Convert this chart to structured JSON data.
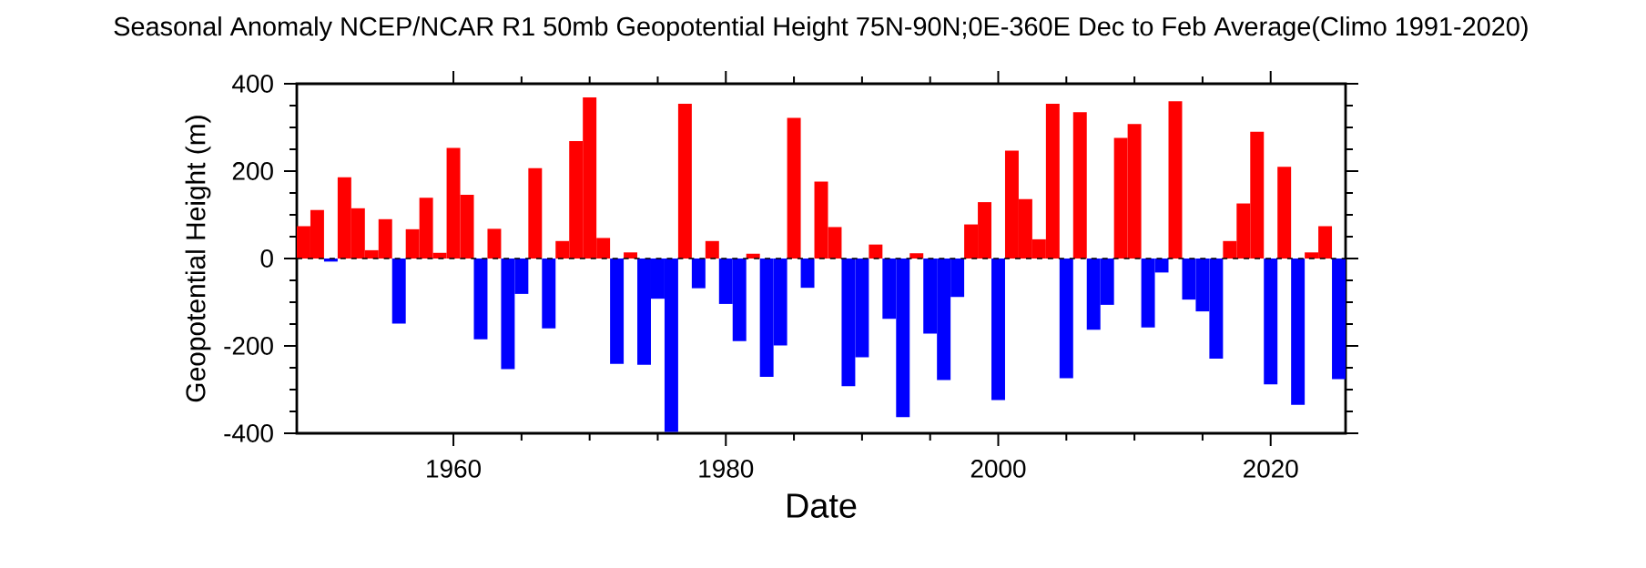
{
  "chart_data": {
    "type": "bar",
    "title": "Seasonal Anomaly NCEP/NCAR R1 50mb Geopotential Height 75N-90N;0E-360E Dec to Feb Average(Climo 1991-2020)",
    "xlabel": "Date",
    "ylabel": "Geopotential Height (m)",
    "x": [
      1949,
      1950,
      1951,
      1952,
      1953,
      1954,
      1955,
      1956,
      1957,
      1958,
      1959,
      1960,
      1961,
      1962,
      1963,
      1964,
      1965,
      1966,
      1967,
      1968,
      1969,
      1970,
      1971,
      1972,
      1973,
      1974,
      1975,
      1976,
      1977,
      1978,
      1979,
      1980,
      1981,
      1982,
      1983,
      1984,
      1985,
      1986,
      1987,
      1988,
      1989,
      1990,
      1991,
      1992,
      1993,
      1994,
      1995,
      1996,
      1997,
      1998,
      1999,
      2000,
      2001,
      2002,
      2003,
      2004,
      2005,
      2006,
      2007,
      2008,
      2009,
      2010,
      2011,
      2012,
      2013,
      2014,
      2015,
      2016,
      2017,
      2018,
      2019,
      2020,
      2021,
      2022,
      2023,
      2024,
      2025
    ],
    "values": [
      74,
      111,
      -7,
      186,
      115,
      19,
      90,
      -149,
      67,
      139,
      13,
      253,
      146,
      -185,
      68,
      -253,
      -81,
      207,
      -160,
      40,
      269,
      369,
      47,
      -241,
      14,
      -243,
      -92,
      -397,
      354,
      -68,
      40,
      -104,
      -189,
      11,
      -271,
      -199,
      322,
      -67,
      176,
      72,
      -292,
      -226,
      32,
      -138,
      -363,
      12,
      -172,
      -278,
      -88,
      78,
      129,
      -324,
      247,
      136,
      44,
      354,
      -274,
      335,
      -163,
      -106,
      276,
      308,
      -158,
      -32,
      360,
      -94,
      -121,
      -229,
      40,
      126,
      290,
      -288,
      210,
      -335,
      14,
      74,
      -276
    ],
    "colors": [
      "#ff0000",
      "#ff0000",
      "#0000ff",
      "#ff0000",
      "#ff0000",
      "#ff0000",
      "#ff0000",
      "#0000ff",
      "#ff0000",
      "#ff0000",
      "#ff0000",
      "#ff0000",
      "#ff0000",
      "#0000ff",
      "#ff0000",
      "#0000ff",
      "#0000ff",
      "#ff0000",
      "#0000ff",
      "#ff0000",
      "#ff0000",
      "#ff0000",
      "#ff0000",
      "#0000ff",
      "#ff0000",
      "#0000ff",
      "#0000ff",
      "#0000ff",
      "#ff0000",
      "#0000ff",
      "#ff0000",
      "#0000ff",
      "#0000ff",
      "#ff0000",
      "#0000ff",
      "#0000ff",
      "#ff0000",
      "#0000ff",
      "#ff0000",
      "#ff0000",
      "#0000ff",
      "#0000ff",
      "#ff0000",
      "#0000ff",
      "#0000ff",
      "#ff0000",
      "#0000ff",
      "#0000ff",
      "#0000ff",
      "#ff0000",
      "#ff0000",
      "#0000ff",
      "#ff0000",
      "#ff0000",
      "#ff0000",
      "#ff0000",
      "#0000ff",
      "#ff0000",
      "#0000ff",
      "#0000ff",
      "#ff0000",
      "#ff0000",
      "#0000ff",
      "#0000ff",
      "#ff0000",
      "#0000ff",
      "#0000ff",
      "#0000ff",
      "#ff0000",
      "#ff0000",
      "#ff0000",
      "#0000ff",
      "#ff0000",
      "#0000ff",
      "#ff0000",
      "#ff0000",
      "#0000ff"
    ],
    "xlim": [
      1948.5,
      2025.5
    ],
    "xticks": [
      1960,
      1980,
      2000,
      2020
    ],
    "ylim": [
      -400,
      400
    ],
    "yticks": [
      -400,
      -200,
      0,
      200,
      400
    ],
    "ref_lines": [
      {
        "axis": "y",
        "value": 0,
        "line_style": "dashed",
        "color": "#000000"
      }
    ]
  }
}
